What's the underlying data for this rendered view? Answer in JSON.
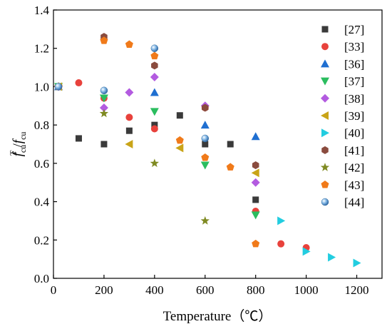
{
  "chart_data": {
    "type": "scatter",
    "xlabel": "Temperature（℃）",
    "ylabel": {
      "f": "f",
      "sup": "T",
      "sub1": "cu",
      "slash": "/",
      "f2": "f",
      "sub2": "cu"
    },
    "xlim": [
      0,
      1300
    ],
    "ylim": [
      0,
      1.4
    ],
    "xticks": [
      0,
      200,
      400,
      600,
      800,
      1000,
      1200
    ],
    "yticks": [
      0.0,
      0.2,
      0.4,
      0.6,
      0.8,
      1.0,
      1.2,
      1.4
    ],
    "xtick_labels": [
      "0",
      "200",
      "400",
      "600",
      "800",
      "1000",
      "1200"
    ],
    "ytick_labels": [
      "0.0",
      "0.2",
      "0.4",
      "0.6",
      "0.8",
      "1.0",
      "1.2",
      "1.4"
    ],
    "grid": false,
    "legend": "right",
    "series": [
      {
        "name": "[27]",
        "marker": "square",
        "color": "#3a3a3a",
        "points": [
          [
            20,
            1.0
          ],
          [
            100,
            0.73
          ],
          [
            200,
            0.7
          ],
          [
            300,
            0.77
          ],
          [
            400,
            0.8
          ],
          [
            500,
            0.85
          ],
          [
            600,
            0.7
          ],
          [
            700,
            0.7
          ],
          [
            800,
            0.41
          ]
        ]
      },
      {
        "name": "[33]",
        "marker": "circle",
        "color": "#e8423c",
        "points": [
          [
            20,
            1.0
          ],
          [
            100,
            1.02
          ],
          [
            200,
            0.94
          ],
          [
            300,
            0.84
          ],
          [
            400,
            0.78
          ],
          [
            600,
            0.89
          ],
          [
            800,
            0.35
          ],
          [
            900,
            0.18
          ],
          [
            1000,
            0.16
          ]
        ]
      },
      {
        "name": "[36]",
        "marker": "triangle-up",
        "color": "#1f6fd1",
        "points": [
          [
            20,
            1.0
          ],
          [
            400,
            0.97
          ],
          [
            600,
            0.8
          ],
          [
            800,
            0.74
          ]
        ]
      },
      {
        "name": "[37]",
        "marker": "triangle-down",
        "color": "#2bbd5f",
        "points": [
          [
            20,
            1.0
          ],
          [
            200,
            0.94
          ],
          [
            400,
            0.87
          ],
          [
            600,
            0.59
          ],
          [
            800,
            0.33
          ]
        ]
      },
      {
        "name": "[38]",
        "marker": "diamond",
        "color": "#b35be0",
        "points": [
          [
            20,
            1.0
          ],
          [
            200,
            0.89
          ],
          [
            300,
            0.97
          ],
          [
            400,
            1.05
          ],
          [
            600,
            0.9
          ],
          [
            800,
            0.5
          ]
        ]
      },
      {
        "name": "[39]",
        "marker": "triangle-left",
        "color": "#c9a418",
        "points": [
          [
            20,
            1.0
          ],
          [
            300,
            0.7
          ],
          [
            500,
            0.68
          ],
          [
            800,
            0.55
          ]
        ]
      },
      {
        "name": "[40]",
        "marker": "triangle-right",
        "color": "#22cde0",
        "points": [
          [
            900,
            0.3
          ],
          [
            1000,
            0.14
          ],
          [
            1100,
            0.11
          ],
          [
            1200,
            0.08
          ]
        ]
      },
      {
        "name": "[41]",
        "marker": "hexagon",
        "color": "#8a4b3e",
        "points": [
          [
            20,
            1.0
          ],
          [
            200,
            1.26
          ],
          [
            400,
            1.11
          ],
          [
            600,
            0.89
          ],
          [
            800,
            0.59
          ]
        ]
      },
      {
        "name": "[42]",
        "marker": "star",
        "color": "#7f8a22",
        "points": [
          [
            20,
            1.0
          ],
          [
            200,
            0.86
          ],
          [
            400,
            0.6
          ],
          [
            600,
            0.3
          ]
        ]
      },
      {
        "name": "[43]",
        "marker": "pentagon",
        "color": "#f07a1a",
        "points": [
          [
            20,
            1.0
          ],
          [
            200,
            1.24
          ],
          [
            300,
            1.22
          ],
          [
            400,
            1.16
          ],
          [
            500,
            0.72
          ],
          [
            600,
            0.63
          ],
          [
            700,
            0.58
          ],
          [
            800,
            0.18
          ]
        ]
      },
      {
        "name": "[44]",
        "marker": "sphere",
        "color": "#6fa5d8",
        "points": [
          [
            20,
            1.0
          ],
          [
            200,
            0.98
          ],
          [
            400,
            1.2
          ],
          [
            600,
            0.73
          ]
        ]
      }
    ]
  }
}
